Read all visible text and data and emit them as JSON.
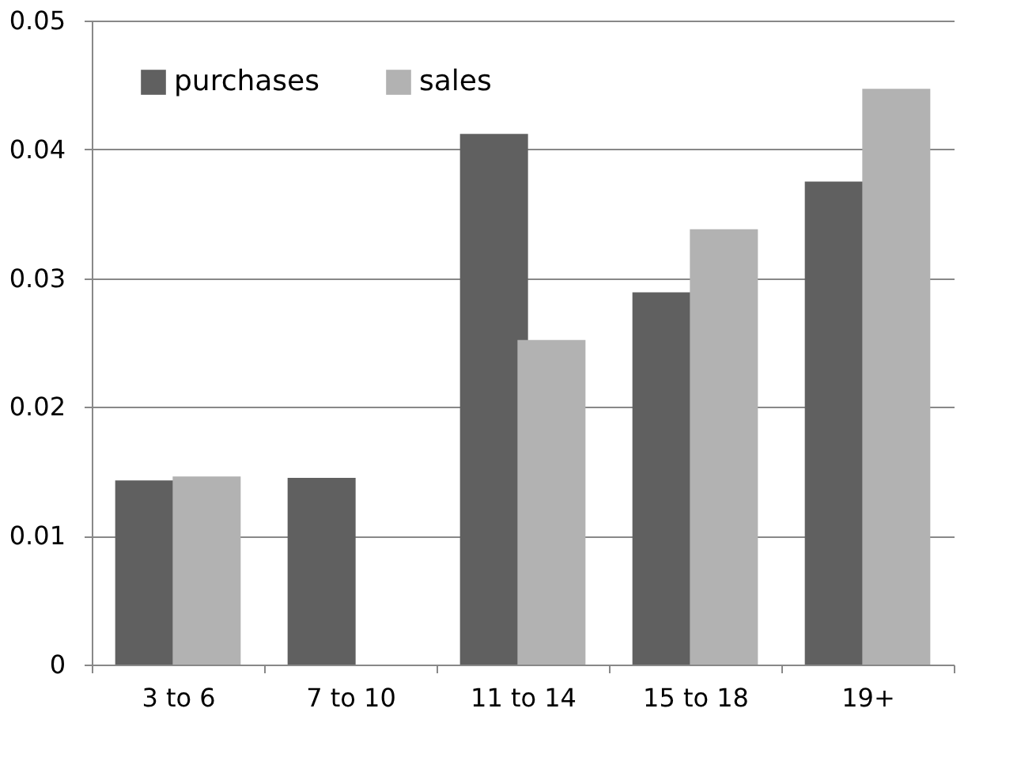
{
  "chart_data": {
    "type": "bar",
    "categories": [
      "3  to 6",
      "7 to 10",
      "11 to 14",
      "15 to 18",
      "19+"
    ],
    "series": [
      {
        "name": "purchases",
        "color": "#606060",
        "values": [
          0.0143,
          0.0145,
          0.0412,
          0.0289,
          0.0375
        ]
      },
      {
        "name": "sales",
        "color": "#b2b2b2",
        "values": [
          0.0146,
          null,
          0.0252,
          0.0338,
          0.0447
        ]
      }
    ],
    "ylim": [
      0,
      0.05
    ],
    "yticks": [
      0,
      0.01,
      0.02,
      0.03,
      0.04,
      0.05
    ],
    "grid": "y",
    "legend": "top left"
  }
}
